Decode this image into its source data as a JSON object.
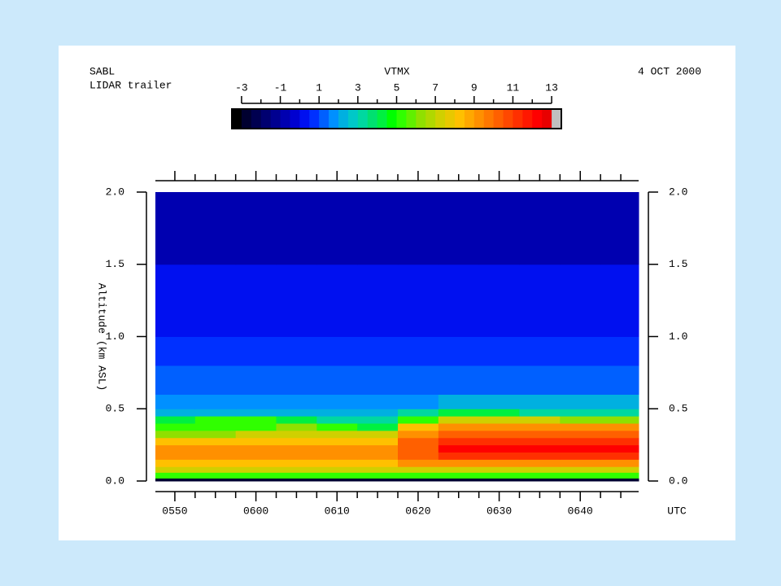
{
  "header": {
    "left_line1": "SABL",
    "left_line2": "LIDAR trailer",
    "date": "4 OCT 2000"
  },
  "chart_data": {
    "type": "heatmap",
    "title": "VTMX",
    "x_label": "UTC",
    "y_label": "Altitude (km ASL)",
    "xlim": [
      347.6,
      407.2
    ],
    "xticks": [
      {
        "value": 350,
        "label": "0550"
      },
      {
        "value": 360,
        "label": "0600"
      },
      {
        "value": 370,
        "label": "0610"
      },
      {
        "value": 380,
        "label": "0620"
      },
      {
        "value": 390,
        "label": "0630"
      },
      {
        "value": 400,
        "label": "0640"
      }
    ],
    "xminorticks": [
      352.5,
      355,
      357.5,
      362.5,
      365,
      367.5,
      372.5,
      375,
      377.5,
      382.5,
      385,
      387.5,
      392.5,
      395,
      397.5,
      402.5,
      405
    ],
    "ylim": [
      0,
      2
    ],
    "yticks": [
      {
        "value": 0,
        "label": "0.0"
      },
      {
        "value": 0.5,
        "label": "0.5"
      },
      {
        "value": 1,
        "label": "1.0"
      },
      {
        "value": 1.5,
        "label": "1.5"
      },
      {
        "value": 2,
        "label": "2.0"
      }
    ],
    "x_bins": [
      347.6,
      352.5,
      357.5,
      362.5,
      367.5,
      372.5,
      377.5,
      382.5,
      387.5,
      392.5,
      397.5,
      402.5,
      407.2
    ],
    "y_bins": [
      0,
      0.02,
      0.06,
      0.1,
      0.15,
      0.2,
      0.25,
      0.3,
      0.35,
      0.4,
      0.45,
      0.5,
      0.6,
      0.8,
      1.0,
      1.5,
      2.0
    ],
    "z": [
      [
        -3,
        -3,
        -3,
        -3,
        -3,
        -3,
        -3,
        -3,
        -3,
        -3,
        -3,
        -3
      ],
      [
        5,
        5,
        5,
        5,
        5,
        5,
        5,
        5,
        5,
        5,
        5,
        5
      ],
      [
        7,
        7,
        7,
        7,
        7,
        7,
        7,
        7,
        7,
        7,
        7,
        7
      ],
      [
        8,
        8,
        8,
        8,
        8,
        8,
        9,
        9,
        9,
        9,
        9,
        9
      ],
      [
        9,
        9,
        9,
        9,
        9,
        9,
        10,
        11,
        11,
        11,
        11,
        11
      ],
      [
        9,
        9,
        9,
        9,
        9,
        9,
        10,
        12,
        12,
        12,
        12,
        12
      ],
      [
        8,
        8,
        8,
        8,
        8,
        8,
        10,
        11,
        11,
        11,
        11,
        11
      ],
      [
        6,
        6,
        7,
        7,
        7,
        7,
        9,
        10,
        10,
        10,
        10,
        10
      ],
      [
        5,
        5,
        5,
        6,
        5,
        4,
        8,
        9,
        9,
        9,
        9,
        9
      ],
      [
        4,
        5,
        5,
        4,
        3,
        3,
        5,
        7,
        7,
        7,
        6,
        6
      ],
      [
        2,
        2,
        2,
        2,
        2,
        2,
        3,
        4,
        4,
        3,
        3,
        3
      ],
      [
        1.5,
        1.5,
        1.5,
        1.5,
        1.5,
        1.5,
        1.5,
        2,
        2,
        2,
        2,
        2
      ],
      [
        1,
        1,
        1,
        1,
        1,
        1,
        1,
        1,
        1,
        1,
        1,
        1
      ],
      [
        0.5,
        0.5,
        0.5,
        0.5,
        0.5,
        0.5,
        0.5,
        0.5,
        0.5,
        0.5,
        0.5,
        0.5
      ],
      [
        0,
        0,
        0,
        0,
        0,
        0,
        0,
        0,
        0,
        0,
        0,
        0
      ],
      [
        -1,
        -1,
        -1,
        -1,
        -1,
        -1,
        -1,
        -1,
        -1,
        -1,
        -1,
        -1
      ]
    ],
    "colorbar_lim": [
      -3.5,
      13.5
    ],
    "colorbar_ticks": [
      -3,
      -1,
      1,
      3,
      5,
      7,
      9,
      11,
      13
    ],
    "colorbar_minor_ticks": [
      -2,
      0,
      2,
      4,
      6,
      8,
      10,
      12
    ],
    "colors": [
      "#000000",
      "#000030",
      "#000050",
      "#000070",
      "#000090",
      "#0000b0",
      "#0000d0",
      "#0010f0",
      "#0030ff",
      "#0060ff",
      "#0090ff",
      "#00b0e0",
      "#00c8c8",
      "#00d8a0",
      "#00e070",
      "#00f040",
      "#00ff00",
      "#30ff00",
      "#60f000",
      "#90e000",
      "#b0d800",
      "#d0d000",
      "#e8c800",
      "#ffc000",
      "#ffa800",
      "#ff9000",
      "#ff7800",
      "#ff6000",
      "#ff4800",
      "#ff3000",
      "#ff1800",
      "#ff0000",
      "#e80000",
      "#c0c0c0"
    ]
  }
}
